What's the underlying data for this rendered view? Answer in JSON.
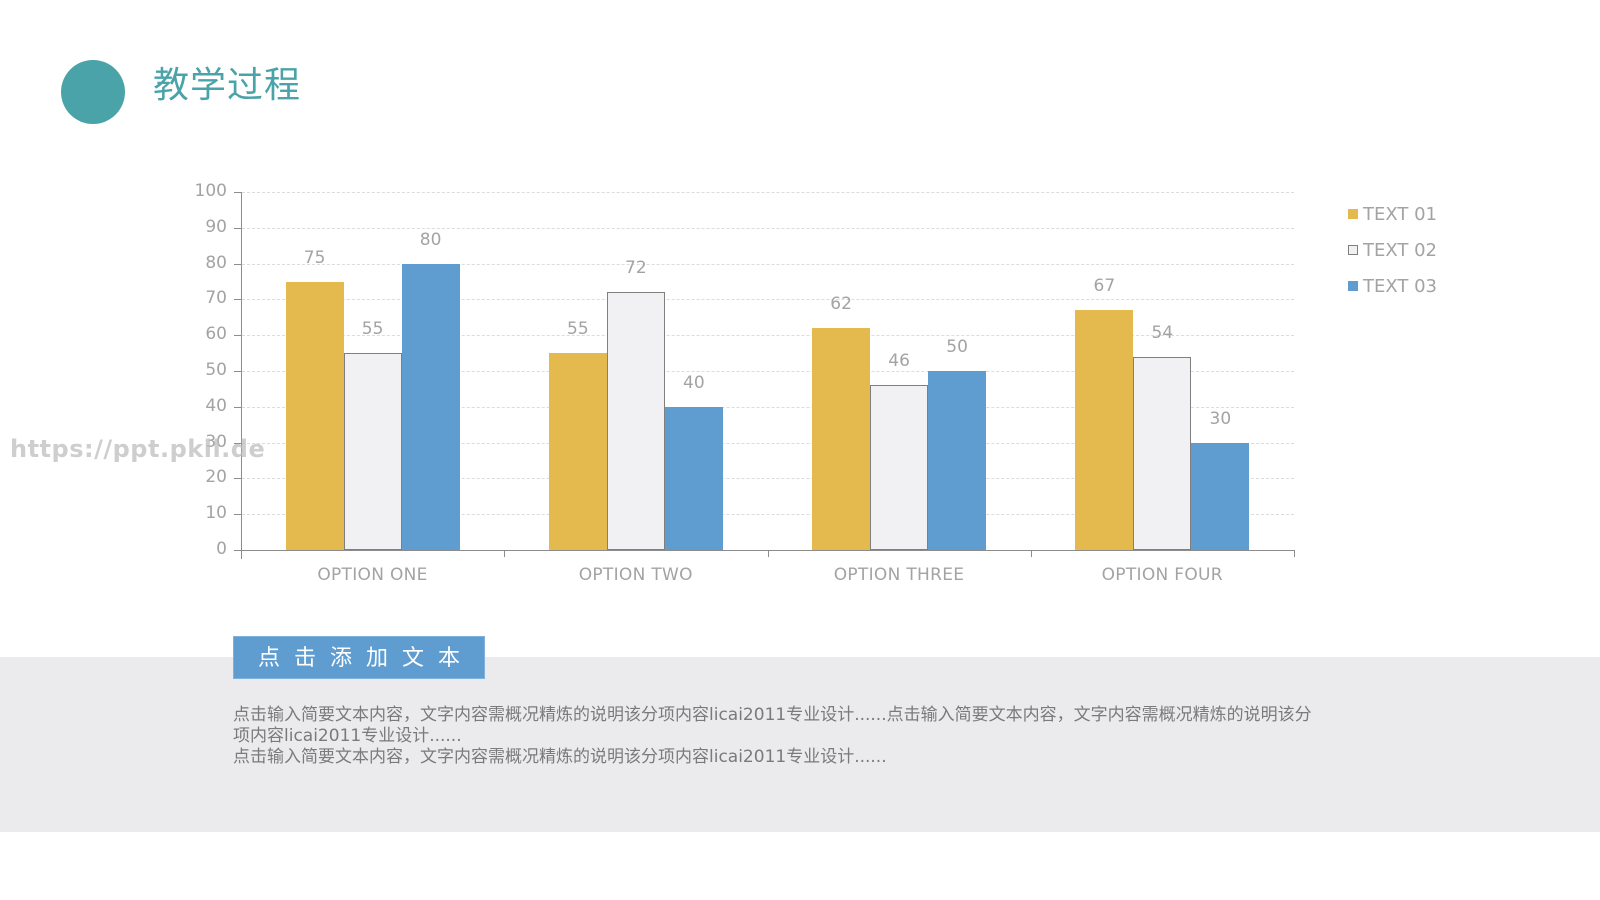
{
  "header": {
    "title": "教学过程",
    "accent_color": "#4aa3a8"
  },
  "chart_data": {
    "type": "bar",
    "title": "",
    "xlabel": "",
    "ylabel": "",
    "ylim": [
      0,
      100
    ],
    "yticks": [
      0,
      10,
      20,
      30,
      40,
      50,
      60,
      70,
      80,
      90,
      100
    ],
    "grid": true,
    "legend_position": "right",
    "categories": [
      "OPTION ONE",
      "OPTION TWO",
      "OPTION THREE",
      "OPTION FOUR"
    ],
    "series": [
      {
        "name": "TEXT 01",
        "color": "#e4b94e",
        "values": [
          75,
          55,
          62,
          67
        ]
      },
      {
        "name": "TEXT 02",
        "color": "#f1f0f2",
        "values": [
          55,
          72,
          46,
          54
        ]
      },
      {
        "name": "TEXT 03",
        "color": "#5f9dd1",
        "values": [
          80,
          40,
          50,
          30
        ]
      }
    ],
    "data_labels": true
  },
  "watermark": "https://ppt.pkll.de",
  "section": {
    "button_label": "点击添加文本",
    "button_color": "#5f9dd1",
    "paragraphs": [
      "点击输入简要文本内容，文字内容需概况精炼的说明该分项内容licai2011专业设计......点击输入简要文本内容，文字内容需概况精炼的说明该分项内容licai2011专业设计......",
      "点击输入简要文本内容，文字内容需概况精炼的说明该分项内容licai2011专业设计......"
    ]
  }
}
